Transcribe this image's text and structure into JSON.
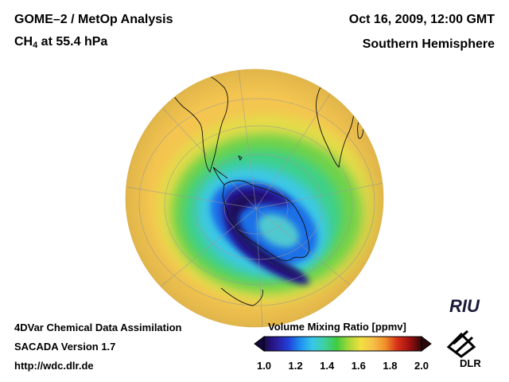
{
  "header": {
    "title": "GOME–2 / MetOp Analysis",
    "species_main": "CH",
    "species_sub": "4",
    "species_rest": " at 55.4 hPa",
    "datetime": "Oct 16, 2009, 12:00 GMT",
    "region": "Southern Hemisphere"
  },
  "footer": {
    "line1": "4DVar Chemical Data Assimilation",
    "line2": "SACADA Version 1.7",
    "line3": "http://wdc.dlr.de"
  },
  "colorbar": {
    "title": "Volume Mixing Ratio [ppmv]",
    "min": 1.0,
    "max": 2.0,
    "ticks": [
      "1.0",
      "1.2",
      "1.4",
      "1.6",
      "1.8",
      "2.0"
    ],
    "colors": [
      "#1a0a4a",
      "#2b1b9a",
      "#2040d8",
      "#1e90f0",
      "#38c8e8",
      "#3fd0a0",
      "#40cc40",
      "#a8d838",
      "#f2e040",
      "#f6c048",
      "#f0902a",
      "#d83018",
      "#a01010",
      "#300808"
    ]
  },
  "logos": {
    "riu": "RIU",
    "dlr": "DLR"
  },
  "map": {
    "background_value": 1.65,
    "ring_value": 1.5,
    "vortex_edge_value": 1.3,
    "vortex_core_value": 1.05
  }
}
